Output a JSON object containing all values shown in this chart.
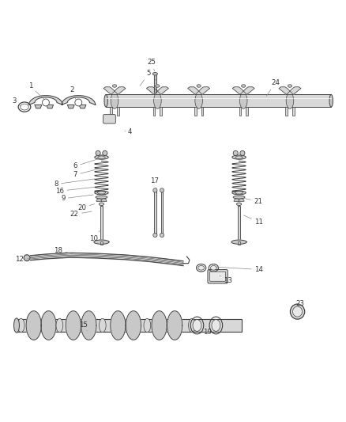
{
  "bg_color": "#ffffff",
  "line_color": "#404040",
  "label_color": "#333333",
  "figsize": [
    4.38,
    5.33
  ],
  "dpi": 100,
  "label_positions": {
    "1": [
      0.085,
      0.862,
      0.13,
      0.82
    ],
    "2": [
      0.205,
      0.852,
      0.22,
      0.818
    ],
    "3": [
      0.038,
      0.82,
      0.062,
      0.8
    ],
    "4": [
      0.375,
      0.73,
      0.36,
      0.732
    ],
    "5": [
      0.43,
      0.9,
      0.4,
      0.858
    ],
    "6": [
      0.215,
      0.63,
      0.295,
      0.655
    ],
    "7": [
      0.215,
      0.605,
      0.295,
      0.625
    ],
    "8": [
      0.16,
      0.578,
      0.278,
      0.594
    ],
    "9": [
      0.18,
      0.536,
      0.275,
      0.548
    ],
    "10": [
      0.27,
      0.42,
      0.29,
      0.448
    ],
    "11": [
      0.75,
      0.468,
      0.7,
      0.49
    ],
    "12": [
      0.052,
      0.36,
      0.088,
      0.362
    ],
    "13": [
      0.66,
      0.298,
      0.63,
      0.316
    ],
    "14": [
      0.75,
      0.33,
      0.618,
      0.338
    ],
    "15": [
      0.24,
      0.17,
      0.25,
      0.152
    ],
    "16": [
      0.17,
      0.558,
      0.278,
      0.57
    ],
    "17": [
      0.445,
      0.588,
      0.455,
      0.555
    ],
    "18": [
      0.165,
      0.386,
      0.212,
      0.375
    ],
    "19": [
      0.6,
      0.148,
      0.59,
      0.168
    ],
    "20": [
      0.235,
      0.51,
      0.278,
      0.522
    ],
    "21": [
      0.748,
      0.528,
      0.7,
      0.538
    ],
    "22": [
      0.213,
      0.49,
      0.27,
      0.5
    ],
    "23": [
      0.87,
      0.232,
      0.862,
      0.218
    ],
    "24": [
      0.798,
      0.872,
      0.768,
      0.828
    ],
    "25": [
      0.438,
      0.932,
      0.448,
      0.9
    ]
  }
}
